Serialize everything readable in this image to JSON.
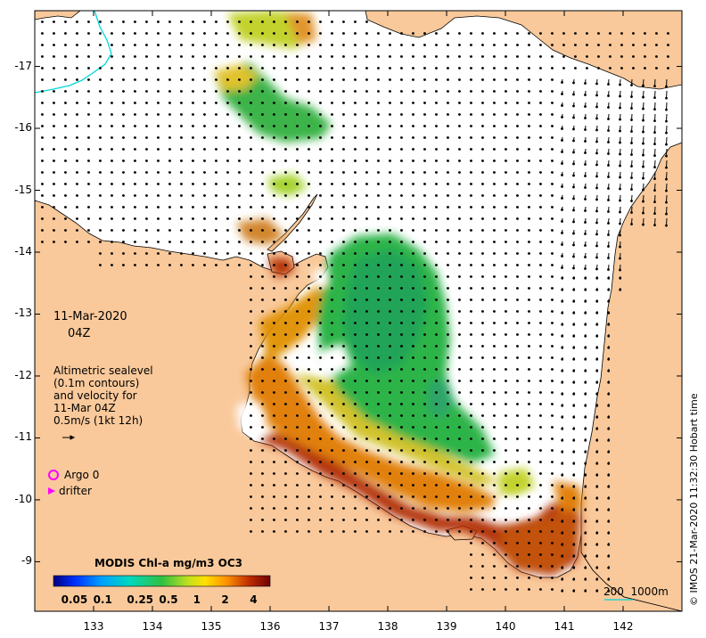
{
  "map": {
    "date": "11-Mar-2020",
    "time": "04Z",
    "legend_lines": [
      "Altimetric sealevel",
      "(0.1m contours)",
      "and velocity for",
      "11-Mar 04Z",
      "0.5m/s (1kt 12h)"
    ],
    "argo_label": "Argo 0",
    "drifter_label": "drifter",
    "colorbar_title": "MODIS Chl-a mg/m3 OC3",
    "colorbar_ticks": [
      "0.05",
      "0.1",
      "0.25",
      "0.5",
      "1",
      "2",
      "4"
    ],
    "scale_label": "200  1000m",
    "credit": "© IMOS 21-Mar-2020 11:32:30 Hobart time",
    "lat_ticks": [
      "-9",
      "-10",
      "-11",
      "-12",
      "-13",
      "-14",
      "-15",
      "-16",
      "-17"
    ],
    "lon_ticks": [
      "133",
      "134",
      "135",
      "136",
      "137",
      "138",
      "139",
      "140",
      "141",
      "142"
    ],
    "lon_range": [
      132.0,
      143.0
    ],
    "lat_range": [
      -17.9,
      -8.2
    ],
    "colors": {
      "land": "#f9c99b",
      "ocean": "#ffffff",
      "coast": "#000000",
      "bathy_contour": "#00d8d8",
      "argo_marker": "#ff00ff",
      "drifter_marker": "#ff00ff"
    },
    "colormap_stops": [
      "#000080",
      "#0030ff",
      "#00a0ff",
      "#00d8c0",
      "#30c040",
      "#a8e020",
      "#ffe000",
      "#ff9000",
      "#e05000",
      "#b02000",
      "#700000"
    ]
  }
}
